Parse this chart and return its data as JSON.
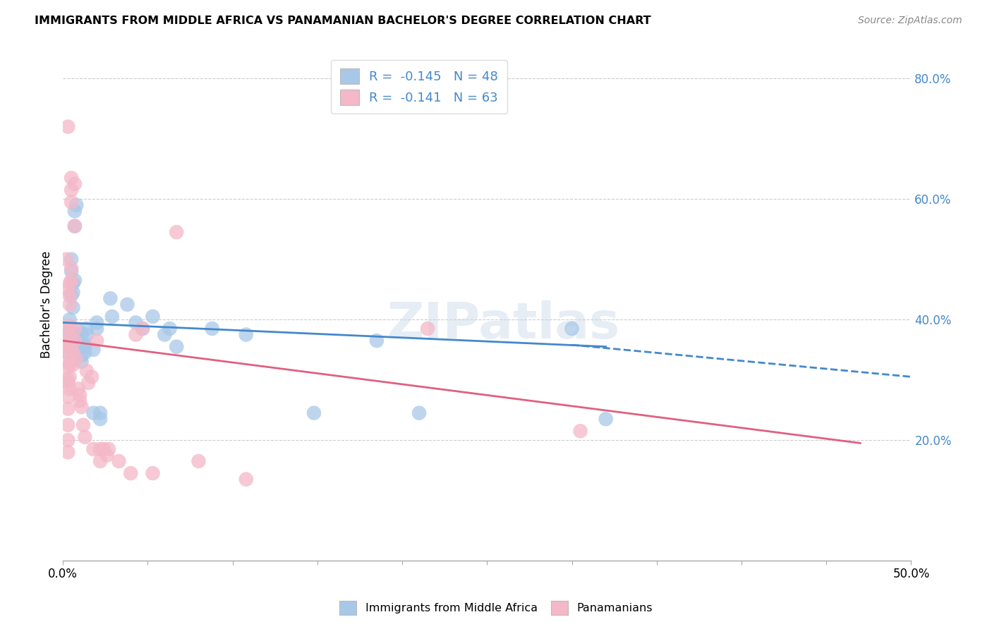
{
  "title": "IMMIGRANTS FROM MIDDLE AFRICA VS PANAMANIAN BACHELOR'S DEGREE CORRELATION CHART",
  "source": "Source: ZipAtlas.com",
  "ylabel": "Bachelor's Degree",
  "xlim": [
    0.0,
    0.5
  ],
  "ylim": [
    0.0,
    0.85
  ],
  "xtick_positions": [
    0.0,
    0.05,
    0.1,
    0.15,
    0.2,
    0.25,
    0.3,
    0.35,
    0.4,
    0.45,
    0.5
  ],
  "xtick_labels": [
    "0.0%",
    "",
    "",
    "",
    "",
    "",
    "",
    "",
    "",
    "",
    "50.0%"
  ],
  "ytick_right_positions": [
    0.2,
    0.4,
    0.6,
    0.8
  ],
  "ytick_right_labels": [
    "20.0%",
    "40.0%",
    "60.0%",
    "80.0%"
  ],
  "blue_color": "#a8c8e8",
  "pink_color": "#f4b8c8",
  "blue_line_color": "#4488cc",
  "pink_line_color": "#e06080",
  "blue_scatter": [
    [
      0.003,
      0.345
    ],
    [
      0.003,
      0.37
    ],
    [
      0.004,
      0.38
    ],
    [
      0.004,
      0.4
    ],
    [
      0.005,
      0.48
    ],
    [
      0.005,
      0.5
    ],
    [
      0.005,
      0.44
    ],
    [
      0.005,
      0.385
    ],
    [
      0.005,
      0.36
    ],
    [
      0.006,
      0.46
    ],
    [
      0.006,
      0.445
    ],
    [
      0.006,
      0.42
    ],
    [
      0.007,
      0.555
    ],
    [
      0.007,
      0.465
    ],
    [
      0.007,
      0.58
    ],
    [
      0.008,
      0.59
    ],
    [
      0.009,
      0.37
    ],
    [
      0.009,
      0.35
    ],
    [
      0.01,
      0.38
    ],
    [
      0.011,
      0.375
    ],
    [
      0.011,
      0.34
    ],
    [
      0.011,
      0.33
    ],
    [
      0.013,
      0.355
    ],
    [
      0.013,
      0.36
    ],
    [
      0.013,
      0.345
    ],
    [
      0.014,
      0.385
    ],
    [
      0.014,
      0.375
    ],
    [
      0.018,
      0.35
    ],
    [
      0.018,
      0.245
    ],
    [
      0.02,
      0.395
    ],
    [
      0.02,
      0.385
    ],
    [
      0.022,
      0.245
    ],
    [
      0.022,
      0.235
    ],
    [
      0.028,
      0.435
    ],
    [
      0.029,
      0.405
    ],
    [
      0.038,
      0.425
    ],
    [
      0.043,
      0.395
    ],
    [
      0.047,
      0.385
    ],
    [
      0.053,
      0.405
    ],
    [
      0.06,
      0.375
    ],
    [
      0.063,
      0.385
    ],
    [
      0.067,
      0.355
    ],
    [
      0.088,
      0.385
    ],
    [
      0.108,
      0.375
    ],
    [
      0.148,
      0.245
    ],
    [
      0.185,
      0.365
    ],
    [
      0.21,
      0.245
    ],
    [
      0.3,
      0.385
    ],
    [
      0.32,
      0.235
    ]
  ],
  "pink_scatter": [
    [
      0.002,
      0.5
    ],
    [
      0.003,
      0.45
    ],
    [
      0.003,
      0.72
    ],
    [
      0.003,
      0.385
    ],
    [
      0.003,
      0.36
    ],
    [
      0.003,
      0.345
    ],
    [
      0.003,
      0.33
    ],
    [
      0.003,
      0.32
    ],
    [
      0.003,
      0.3
    ],
    [
      0.003,
      0.295
    ],
    [
      0.003,
      0.272
    ],
    [
      0.003,
      0.252
    ],
    [
      0.003,
      0.225
    ],
    [
      0.003,
      0.2
    ],
    [
      0.003,
      0.18
    ],
    [
      0.004,
      0.46
    ],
    [
      0.004,
      0.44
    ],
    [
      0.004,
      0.425
    ],
    [
      0.004,
      0.39
    ],
    [
      0.004,
      0.37
    ],
    [
      0.004,
      0.355
    ],
    [
      0.004,
      0.325
    ],
    [
      0.004,
      0.305
    ],
    [
      0.004,
      0.285
    ],
    [
      0.005,
      0.635
    ],
    [
      0.005,
      0.615
    ],
    [
      0.005,
      0.595
    ],
    [
      0.005,
      0.485
    ],
    [
      0.005,
      0.465
    ],
    [
      0.006,
      0.345
    ],
    [
      0.006,
      0.325
    ],
    [
      0.007,
      0.625
    ],
    [
      0.007,
      0.555
    ],
    [
      0.007,
      0.385
    ],
    [
      0.007,
      0.365
    ],
    [
      0.008,
      0.335
    ],
    [
      0.009,
      0.285
    ],
    [
      0.01,
      0.265
    ],
    [
      0.01,
      0.275
    ],
    [
      0.011,
      0.255
    ],
    [
      0.012,
      0.225
    ],
    [
      0.013,
      0.205
    ],
    [
      0.014,
      0.315
    ],
    [
      0.015,
      0.295
    ],
    [
      0.017,
      0.305
    ],
    [
      0.018,
      0.185
    ],
    [
      0.02,
      0.365
    ],
    [
      0.022,
      0.185
    ],
    [
      0.022,
      0.165
    ],
    [
      0.024,
      0.185
    ],
    [
      0.026,
      0.175
    ],
    [
      0.027,
      0.185
    ],
    [
      0.033,
      0.165
    ],
    [
      0.04,
      0.145
    ],
    [
      0.043,
      0.375
    ],
    [
      0.047,
      0.385
    ],
    [
      0.053,
      0.145
    ],
    [
      0.067,
      0.545
    ],
    [
      0.08,
      0.165
    ],
    [
      0.108,
      0.135
    ],
    [
      0.215,
      0.385
    ],
    [
      0.305,
      0.215
    ]
  ],
  "blue_trendline_solid": [
    [
      0.0,
      0.395
    ],
    [
      0.32,
      0.355
    ]
  ],
  "blue_trendline_dashed": [
    [
      0.3,
      0.358
    ],
    [
      0.5,
      0.305
    ]
  ],
  "pink_trendline": [
    [
      0.0,
      0.365
    ],
    [
      0.47,
      0.195
    ]
  ],
  "watermark_text": "ZIPatlas",
  "background_color": "#ffffff",
  "grid_color": "#cccccc"
}
